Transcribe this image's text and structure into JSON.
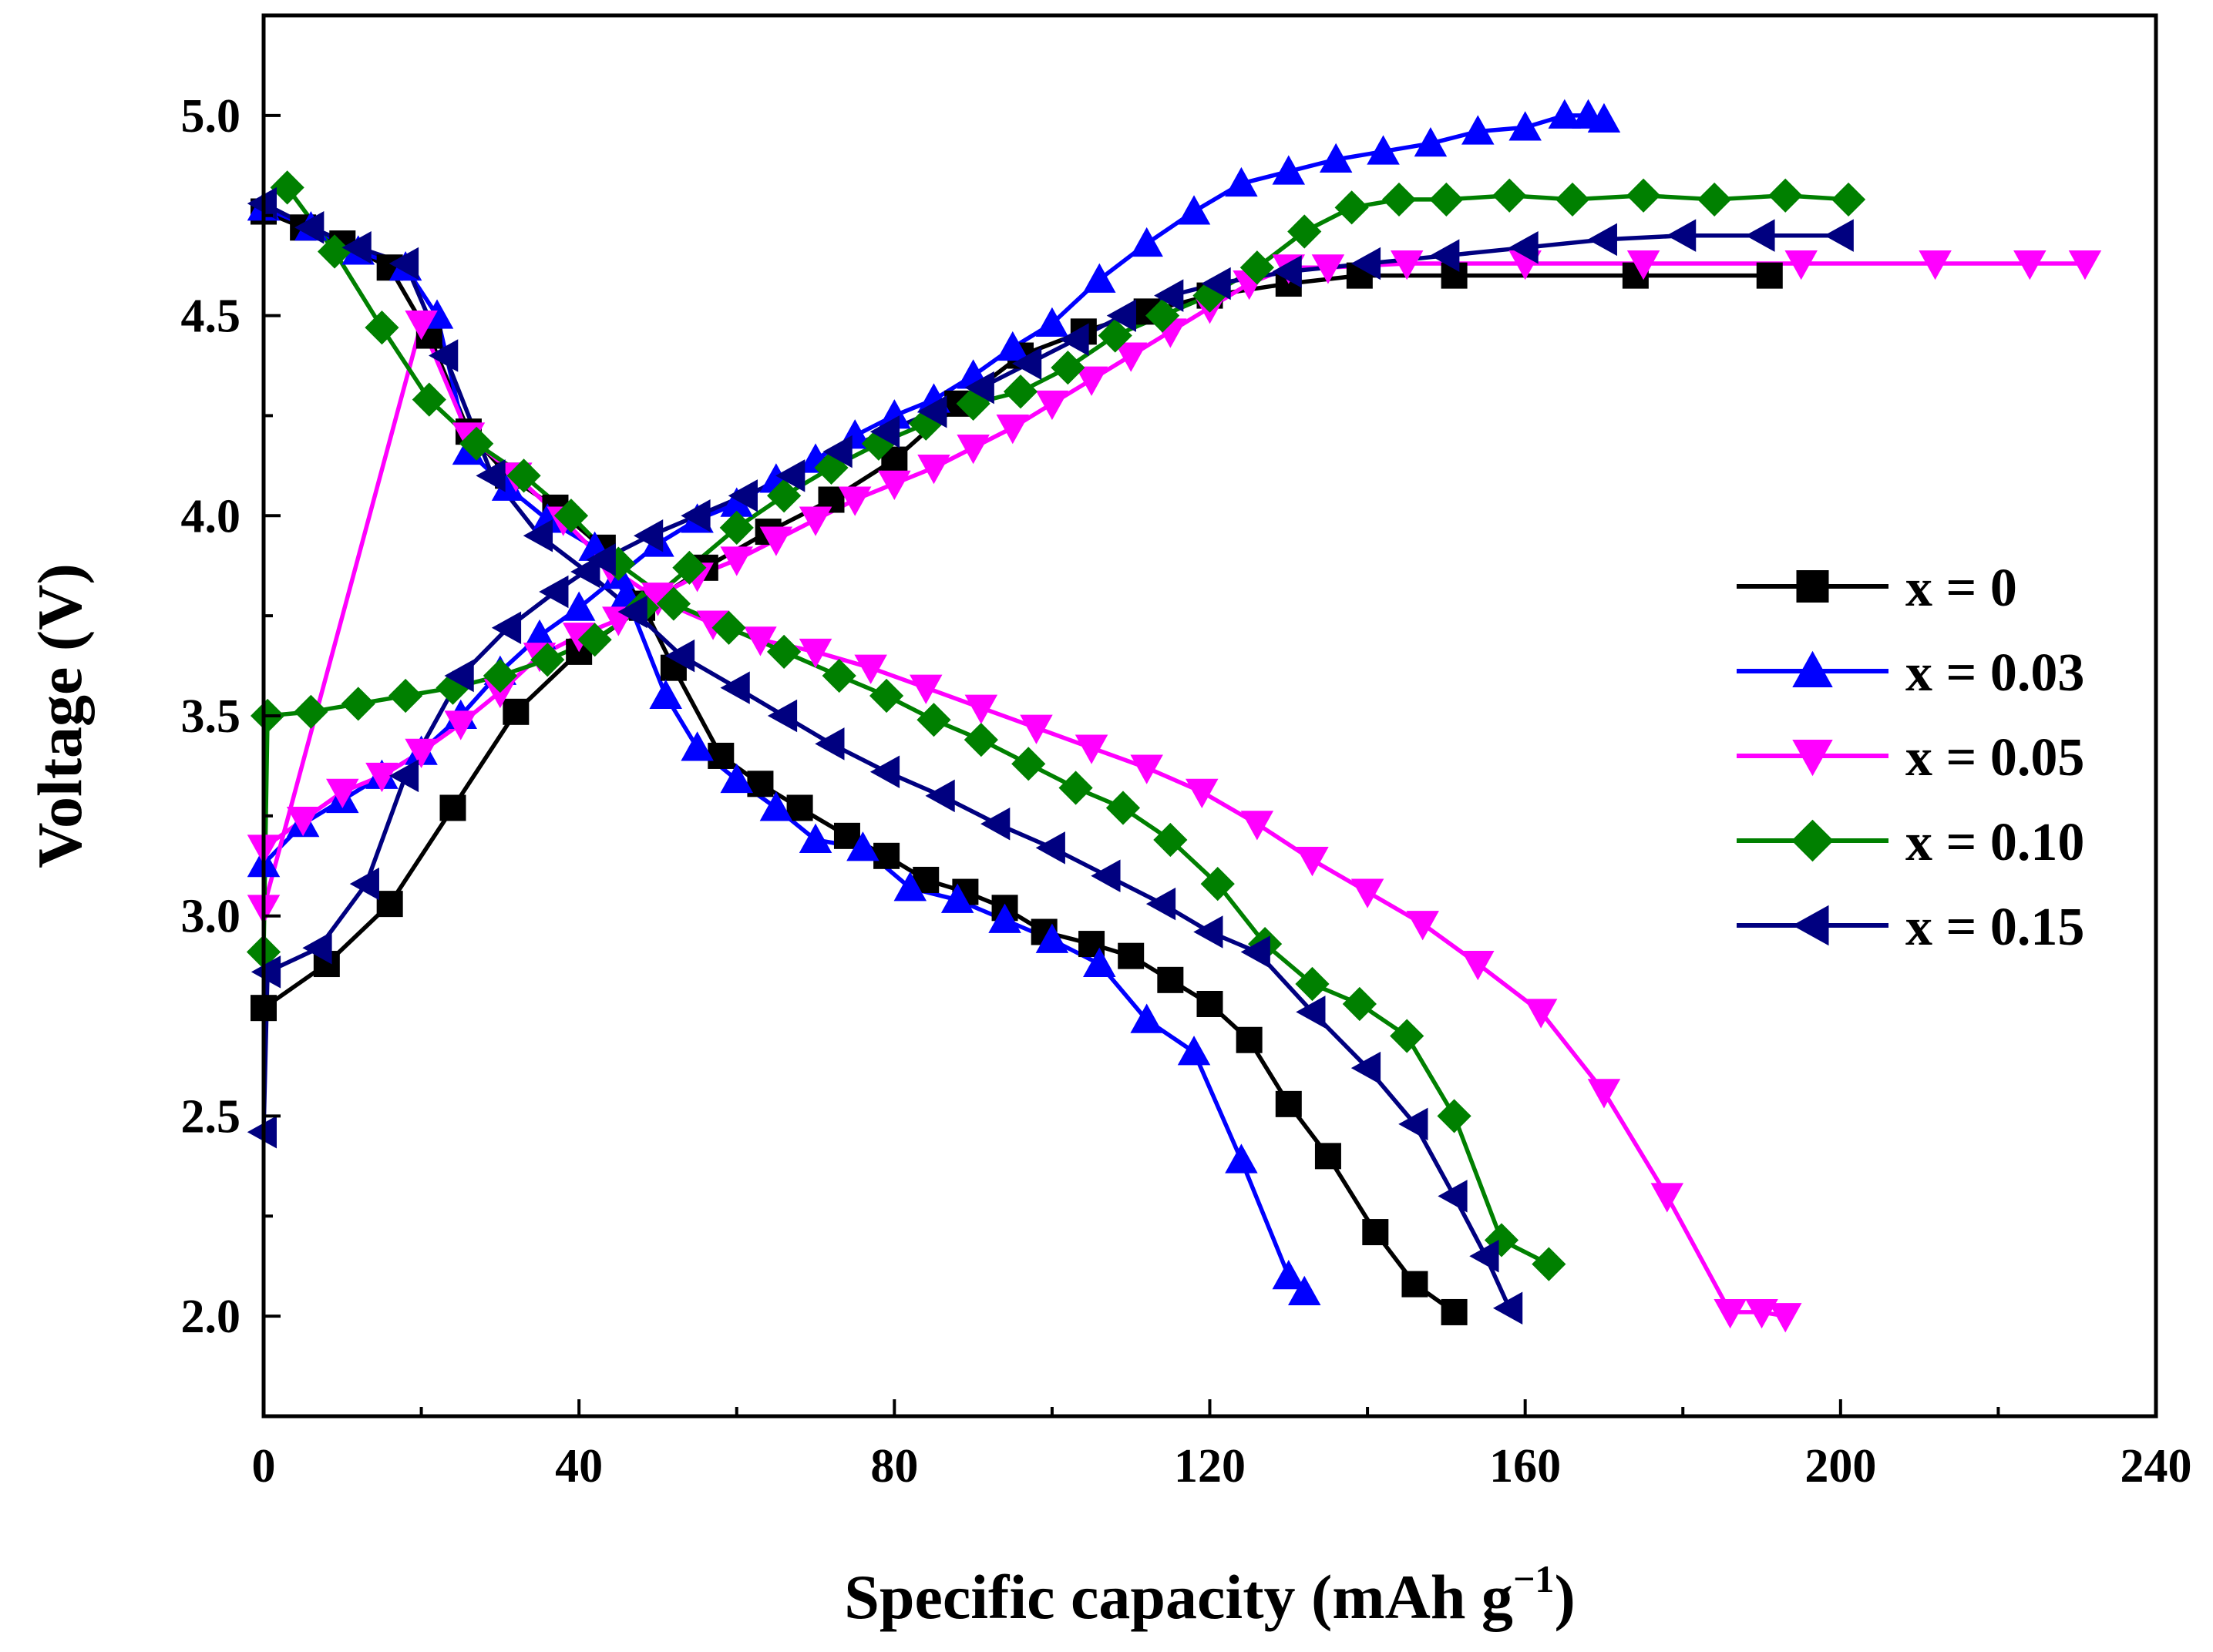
{
  "chart_data": {
    "type": "line",
    "title": "",
    "xlabel": "Specific capacity (mAh g",
    "xlabel_sup": "−1",
    "xlabel_end": ")",
    "ylabel": "Voltage (V)",
    "xlim": [
      0,
      240
    ],
    "ylim": [
      1.75,
      5.25
    ],
    "xticks": [
      0,
      40,
      80,
      120,
      160,
      200,
      240
    ],
    "xtick_labels": [
      "0",
      "40",
      "80",
      "120",
      "160",
      "200",
      "240"
    ],
    "yticks": [
      2.0,
      2.5,
      3.0,
      3.5,
      4.0,
      4.5,
      5.0
    ],
    "ytick_labels": [
      "2.0",
      "2.5",
      "3.0",
      "3.5",
      "4.0",
      "4.5",
      "5.0"
    ],
    "grid": false,
    "legend_position": "right",
    "series": [
      {
        "name": "x = 0",
        "color": "#000000",
        "marker": "square",
        "charge": [
          [
            0,
            2.77
          ],
          [
            8,
            2.88
          ],
          [
            16,
            3.03
          ],
          [
            24,
            3.27
          ],
          [
            32,
            3.51
          ],
          [
            40,
            3.66
          ],
          [
            48,
            3.77
          ],
          [
            56,
            3.87
          ],
          [
            64,
            3.96
          ],
          [
            72,
            4.04
          ],
          [
            80,
            4.14
          ],
          [
            88,
            4.28
          ],
          [
            96,
            4.4
          ],
          [
            104,
            4.46
          ],
          [
            112,
            4.51
          ],
          [
            120,
            4.55
          ],
          [
            130,
            4.58
          ],
          [
            139,
            4.6
          ],
          [
            151,
            4.6
          ],
          [
            174,
            4.6
          ],
          [
            191,
            4.6
          ]
        ],
        "discharge": [
          [
            0,
            4.76
          ],
          [
            5,
            4.72
          ],
          [
            10,
            4.68
          ],
          [
            16,
            4.62
          ],
          [
            21,
            4.45
          ],
          [
            26,
            4.21
          ],
          [
            31,
            4.1
          ],
          [
            37,
            4.02
          ],
          [
            43,
            3.92
          ],
          [
            48,
            3.78
          ],
          [
            52,
            3.62
          ],
          [
            58,
            3.4
          ],
          [
            63,
            3.33
          ],
          [
            68,
            3.27
          ],
          [
            74,
            3.2
          ],
          [
            79,
            3.15
          ],
          [
            84,
            3.09
          ],
          [
            89,
            3.06
          ],
          [
            94,
            3.02
          ],
          [
            99,
            2.96
          ],
          [
            105,
            2.93
          ],
          [
            110,
            2.9
          ],
          [
            115,
            2.84
          ],
          [
            120,
            2.78
          ],
          [
            125,
            2.69
          ],
          [
            130,
            2.53
          ],
          [
            135,
            2.4
          ],
          [
            141,
            2.21
          ],
          [
            146,
            2.08
          ],
          [
            151,
            2.01
          ]
        ]
      },
      {
        "name": "x = 0.03",
        "color": "#0000ff",
        "marker": "triangle-up",
        "charge": [
          [
            0,
            3.13
          ],
          [
            5,
            3.23
          ],
          [
            10,
            3.29
          ],
          [
            15,
            3.35
          ],
          [
            20,
            3.41
          ],
          [
            25,
            3.5
          ],
          [
            30,
            3.61
          ],
          [
            35,
            3.7
          ],
          [
            40,
            3.77
          ],
          [
            45,
            3.85
          ],
          [
            50,
            3.93
          ],
          [
            55,
            3.99
          ],
          [
            60,
            4.03
          ],
          [
            65,
            4.09
          ],
          [
            70,
            4.14
          ],
          [
            75,
            4.2
          ],
          [
            80,
            4.25
          ],
          [
            85,
            4.29
          ],
          [
            90,
            4.35
          ],
          [
            95,
            4.42
          ],
          [
            100,
            4.48
          ],
          [
            106,
            4.59
          ],
          [
            112,
            4.68
          ],
          [
            118,
            4.76
          ],
          [
            124,
            4.83
          ],
          [
            130,
            4.86
          ],
          [
            136,
            4.89
          ],
          [
            142,
            4.91
          ],
          [
            148,
            4.93
          ],
          [
            154,
            4.96
          ],
          [
            160,
            4.97
          ],
          [
            165,
            5.0
          ],
          [
            168,
            5.0
          ],
          [
            170,
            4.99
          ]
        ],
        "discharge": [
          [
            0,
            4.77
          ],
          [
            6,
            4.72
          ],
          [
            12,
            4.66
          ],
          [
            18,
            4.62
          ],
          [
            22,
            4.5
          ],
          [
            26,
            4.16
          ],
          [
            31,
            4.07
          ],
          [
            36,
            3.99
          ],
          [
            42,
            3.92
          ],
          [
            46,
            3.8
          ],
          [
            51,
            3.55
          ],
          [
            55,
            3.42
          ],
          [
            60,
            3.34
          ],
          [
            65,
            3.27
          ],
          [
            70,
            3.19
          ],
          [
            76,
            3.17
          ],
          [
            82,
            3.07
          ],
          [
            88,
            3.04
          ],
          [
            94,
            2.99
          ],
          [
            100,
            2.94
          ],
          [
            106,
            2.88
          ],
          [
            112,
            2.74
          ],
          [
            118,
            2.66
          ],
          [
            124,
            2.39
          ],
          [
            130,
            2.1
          ],
          [
            132,
            2.06
          ]
        ]
      },
      {
        "name": "x = 0.05",
        "color": "#ff00ff",
        "marker": "triangle-down",
        "charge": [
          [
            0,
            3.17
          ],
          [
            5,
            3.24
          ],
          [
            10,
            3.31
          ],
          [
            15,
            3.35
          ],
          [
            20,
            3.41
          ],
          [
            25,
            3.48
          ],
          [
            30,
            3.56
          ],
          [
            35,
            3.65
          ],
          [
            40,
            3.7
          ],
          [
            45,
            3.74
          ],
          [
            50,
            3.8
          ],
          [
            55,
            3.85
          ],
          [
            60,
            3.89
          ],
          [
            65,
            3.94
          ],
          [
            70,
            3.99
          ],
          [
            75,
            4.04
          ],
          [
            80,
            4.08
          ],
          [
            85,
            4.12
          ],
          [
            90,
            4.17
          ],
          [
            95,
            4.22
          ],
          [
            100,
            4.28
          ],
          [
            105,
            4.34
          ],
          [
            110,
            4.4
          ],
          [
            115,
            4.46
          ],
          [
            120,
            4.52
          ],
          [
            125,
            4.58
          ],
          [
            130,
            4.62
          ],
          [
            135,
            4.62
          ],
          [
            145,
            4.63
          ],
          [
            160,
            4.63
          ],
          [
            175,
            4.63
          ],
          [
            195,
            4.63
          ],
          [
            212,
            4.63
          ],
          [
            224,
            4.63
          ],
          [
            231,
            4.63
          ]
        ],
        "discharge": [
          [
            0,
            3.02
          ],
          [
            20,
            4.48
          ],
          [
            26,
            4.2
          ],
          [
            32,
            4.1
          ],
          [
            38,
            3.99
          ],
          [
            44,
            3.87
          ],
          [
            50,
            3.79
          ],
          [
            57,
            3.73
          ],
          [
            63,
            3.69
          ],
          [
            70,
            3.66
          ],
          [
            77,
            3.62
          ],
          [
            84,
            3.57
          ],
          [
            91,
            3.52
          ],
          [
            98,
            3.47
          ],
          [
            105,
            3.42
          ],
          [
            112,
            3.37
          ],
          [
            119,
            3.31
          ],
          [
            126,
            3.23
          ],
          [
            133,
            3.14
          ],
          [
            140,
            3.06
          ],
          [
            147,
            2.98
          ],
          [
            154,
            2.88
          ],
          [
            162,
            2.76
          ],
          [
            170,
            2.56
          ],
          [
            178,
            2.3
          ],
          [
            186,
            2.01
          ],
          [
            190,
            2.01
          ],
          [
            193,
            2.0
          ]
        ]
      },
      {
        "name": "x = 0.10",
        "color": "#008000",
        "marker": "diamond",
        "charge": [
          [
            0,
            2.91
          ],
          [
            0.5,
            3.5
          ],
          [
            6,
            3.51
          ],
          [
            12,
            3.53
          ],
          [
            18,
            3.55
          ],
          [
            24,
            3.57
          ],
          [
            30,
            3.6
          ],
          [
            36,
            3.64
          ],
          [
            42,
            3.69
          ],
          [
            48,
            3.77
          ],
          [
            54,
            3.87
          ],
          [
            60,
            3.97
          ],
          [
            66,
            4.05
          ],
          [
            72,
            4.12
          ],
          [
            78,
            4.18
          ],
          [
            84,
            4.23
          ],
          [
            90,
            4.28
          ],
          [
            96,
            4.31
          ],
          [
            102,
            4.37
          ],
          [
            108,
            4.45
          ],
          [
            114,
            4.5
          ],
          [
            120,
            4.55
          ],
          [
            126,
            4.62
          ],
          [
            132,
            4.71
          ],
          [
            138,
            4.77
          ],
          [
            144,
            4.79
          ],
          [
            150,
            4.79
          ],
          [
            158,
            4.8
          ],
          [
            166,
            4.79
          ],
          [
            175,
            4.8
          ],
          [
            184,
            4.79
          ],
          [
            193,
            4.8
          ],
          [
            201,
            4.79
          ]
        ],
        "discharge": [
          [
            3,
            4.82
          ],
          [
            9,
            4.66
          ],
          [
            15,
            4.47
          ],
          [
            21,
            4.29
          ],
          [
            27,
            4.18
          ],
          [
            33,
            4.1
          ],
          [
            39,
            4.0
          ],
          [
            45,
            3.88
          ],
          [
            52,
            3.78
          ],
          [
            59,
            3.72
          ],
          [
            66,
            3.66
          ],
          [
            73,
            3.6
          ],
          [
            79,
            3.55
          ],
          [
            85,
            3.49
          ],
          [
            91,
            3.44
          ],
          [
            97,
            3.38
          ],
          [
            103,
            3.32
          ],
          [
            109,
            3.27
          ],
          [
            115,
            3.19
          ],
          [
            121,
            3.08
          ],
          [
            127,
            2.93
          ],
          [
            133,
            2.83
          ],
          [
            139,
            2.78
          ],
          [
            145,
            2.7
          ],
          [
            151,
            2.5
          ],
          [
            157,
            2.19
          ],
          [
            163,
            2.13
          ]
        ]
      },
      {
        "name": "x = 0.15",
        "color": "#000080",
        "marker": "triangle-left",
        "charge": [
          [
            0,
            2.46
          ],
          [
            0.5,
            2.86
          ],
          [
            7,
            2.92
          ],
          [
            13,
            3.08
          ],
          [
            18,
            3.35
          ],
          [
            25,
            3.6
          ],
          [
            31,
            3.72
          ],
          [
            37,
            3.81
          ],
          [
            43,
            3.89
          ],
          [
            49,
            3.95
          ],
          [
            55,
            4.0
          ],
          [
            61,
            4.05
          ],
          [
            67,
            4.1
          ],
          [
            73,
            4.16
          ],
          [
            79,
            4.21
          ],
          [
            85,
            4.26
          ],
          [
            91,
            4.32
          ],
          [
            97,
            4.38
          ],
          [
            103,
            4.44
          ],
          [
            109,
            4.5
          ],
          [
            115,
            4.55
          ],
          [
            121,
            4.58
          ],
          [
            130,
            4.61
          ],
          [
            140,
            4.63
          ],
          [
            150,
            4.65
          ],
          [
            160,
            4.67
          ],
          [
            170,
            4.69
          ],
          [
            180,
            4.7
          ],
          [
            190,
            4.7
          ],
          [
            200,
            4.7
          ]
        ],
        "discharge": [
          [
            0,
            4.78
          ],
          [
            6,
            4.72
          ],
          [
            12,
            4.67
          ],
          [
            18,
            4.63
          ],
          [
            23,
            4.4
          ],
          [
            29,
            4.1
          ],
          [
            35,
            3.95
          ],
          [
            41,
            3.86
          ],
          [
            47,
            3.76
          ],
          [
            53,
            3.65
          ],
          [
            60,
            3.57
          ],
          [
            66,
            3.5
          ],
          [
            72,
            3.43
          ],
          [
            79,
            3.36
          ],
          [
            86,
            3.3
          ],
          [
            93,
            3.23
          ],
          [
            100,
            3.17
          ],
          [
            107,
            3.1
          ],
          [
            114,
            3.03
          ],
          [
            120,
            2.96
          ],
          [
            126,
            2.91
          ],
          [
            133,
            2.76
          ],
          [
            140,
            2.62
          ],
          [
            146,
            2.48
          ],
          [
            151,
            2.3
          ],
          [
            155,
            2.15
          ],
          [
            158,
            2.02
          ]
        ]
      }
    ]
  }
}
